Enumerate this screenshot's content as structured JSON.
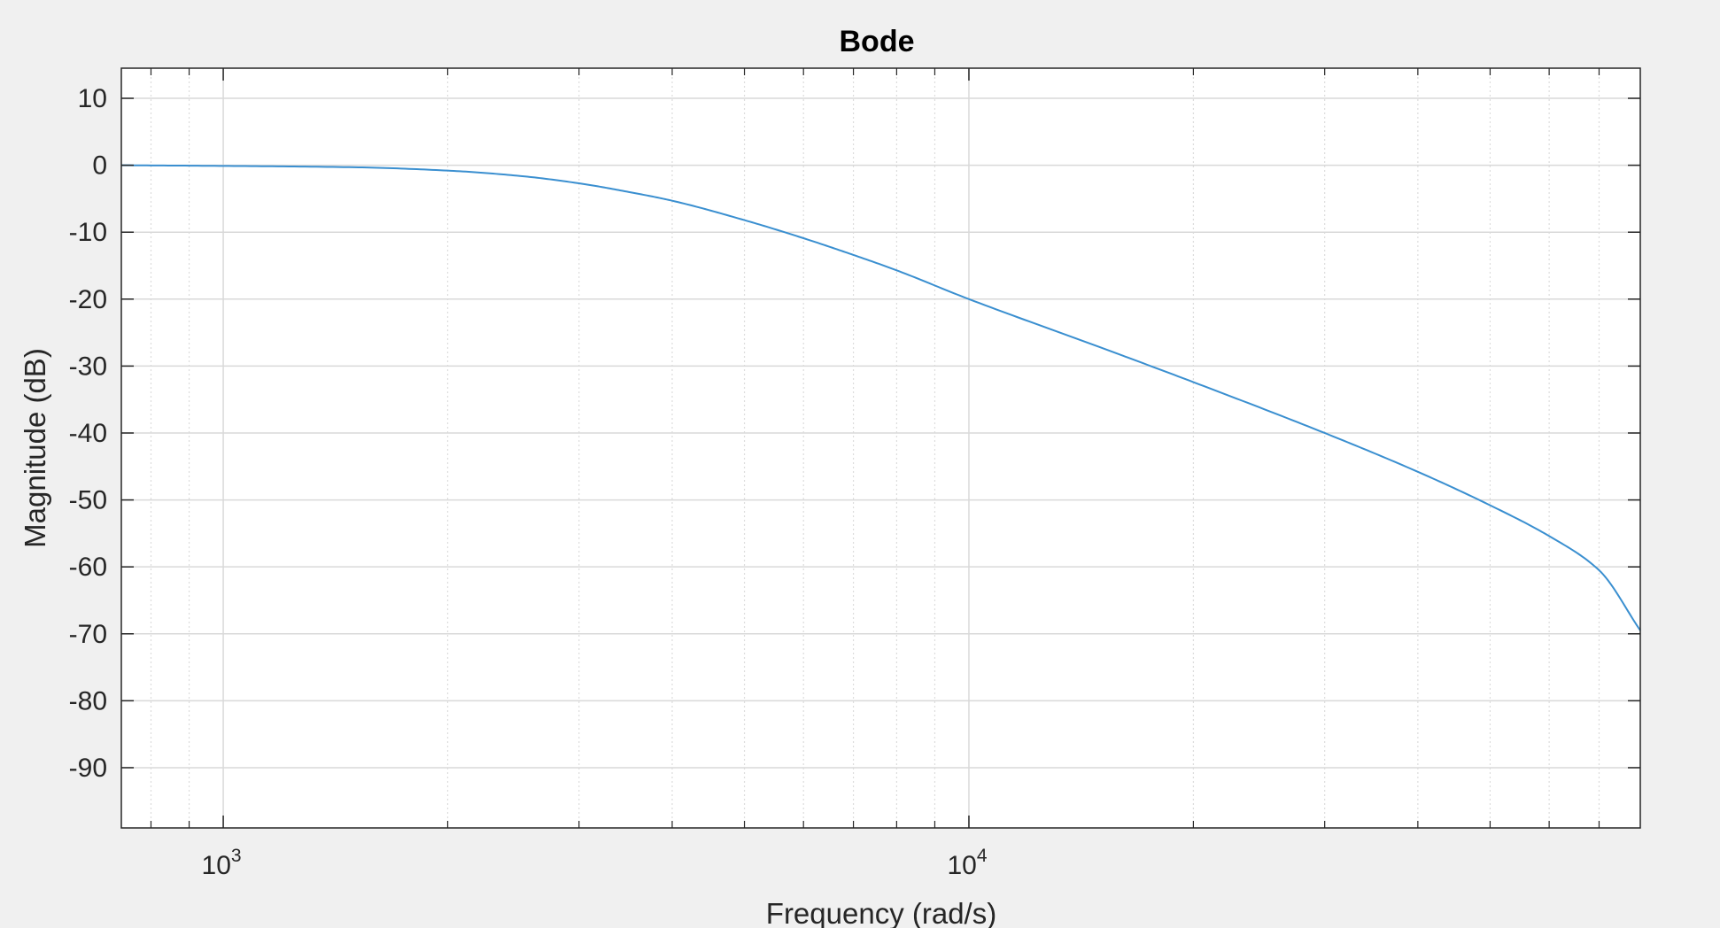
{
  "chart_data": {
    "type": "line",
    "title": "Bode",
    "xlabel": "Frequency (rad/s)",
    "ylabel": "Magnitude (dB)",
    "x_scale": "log",
    "xlim": [
      730,
      79500
    ],
    "ylim": [
      -99,
      14.5
    ],
    "x_ticks": [
      {
        "value": 1000,
        "base": "10",
        "exp": "3"
      },
      {
        "value": 10000,
        "base": "10",
        "exp": "4"
      }
    ],
    "y_ticks": [
      10,
      0,
      -10,
      -20,
      -30,
      -40,
      -50,
      -60,
      -70,
      -80,
      -90
    ],
    "y_tick_labels": [
      "10",
      "0",
      "-10",
      "-20",
      "-30",
      "-40",
      "-50",
      "-60",
      "-70",
      "-80",
      "-90"
    ],
    "grid": true,
    "minor_grid": true,
    "series": [
      {
        "color": "#3a8fd0",
        "x": [
          730,
          1000,
          1500,
          2000,
          2500,
          3000,
          3500,
          4000,
          5000,
          6000,
          7000,
          8000,
          10000,
          15000,
          20000,
          30000,
          40000,
          50000,
          60000,
          70000,
          79500
        ],
        "y": [
          0,
          -0.1,
          -0.3,
          -0.8,
          -1.6,
          -2.7,
          -4.0,
          -5.3,
          -8.2,
          -10.9,
          -13.4,
          -15.7,
          -20.0,
          -27.2,
          -32.4,
          -40.0,
          -45.8,
          -50.8,
          -55.4,
          -60.5,
          -69.5
        ]
      }
    ]
  }
}
